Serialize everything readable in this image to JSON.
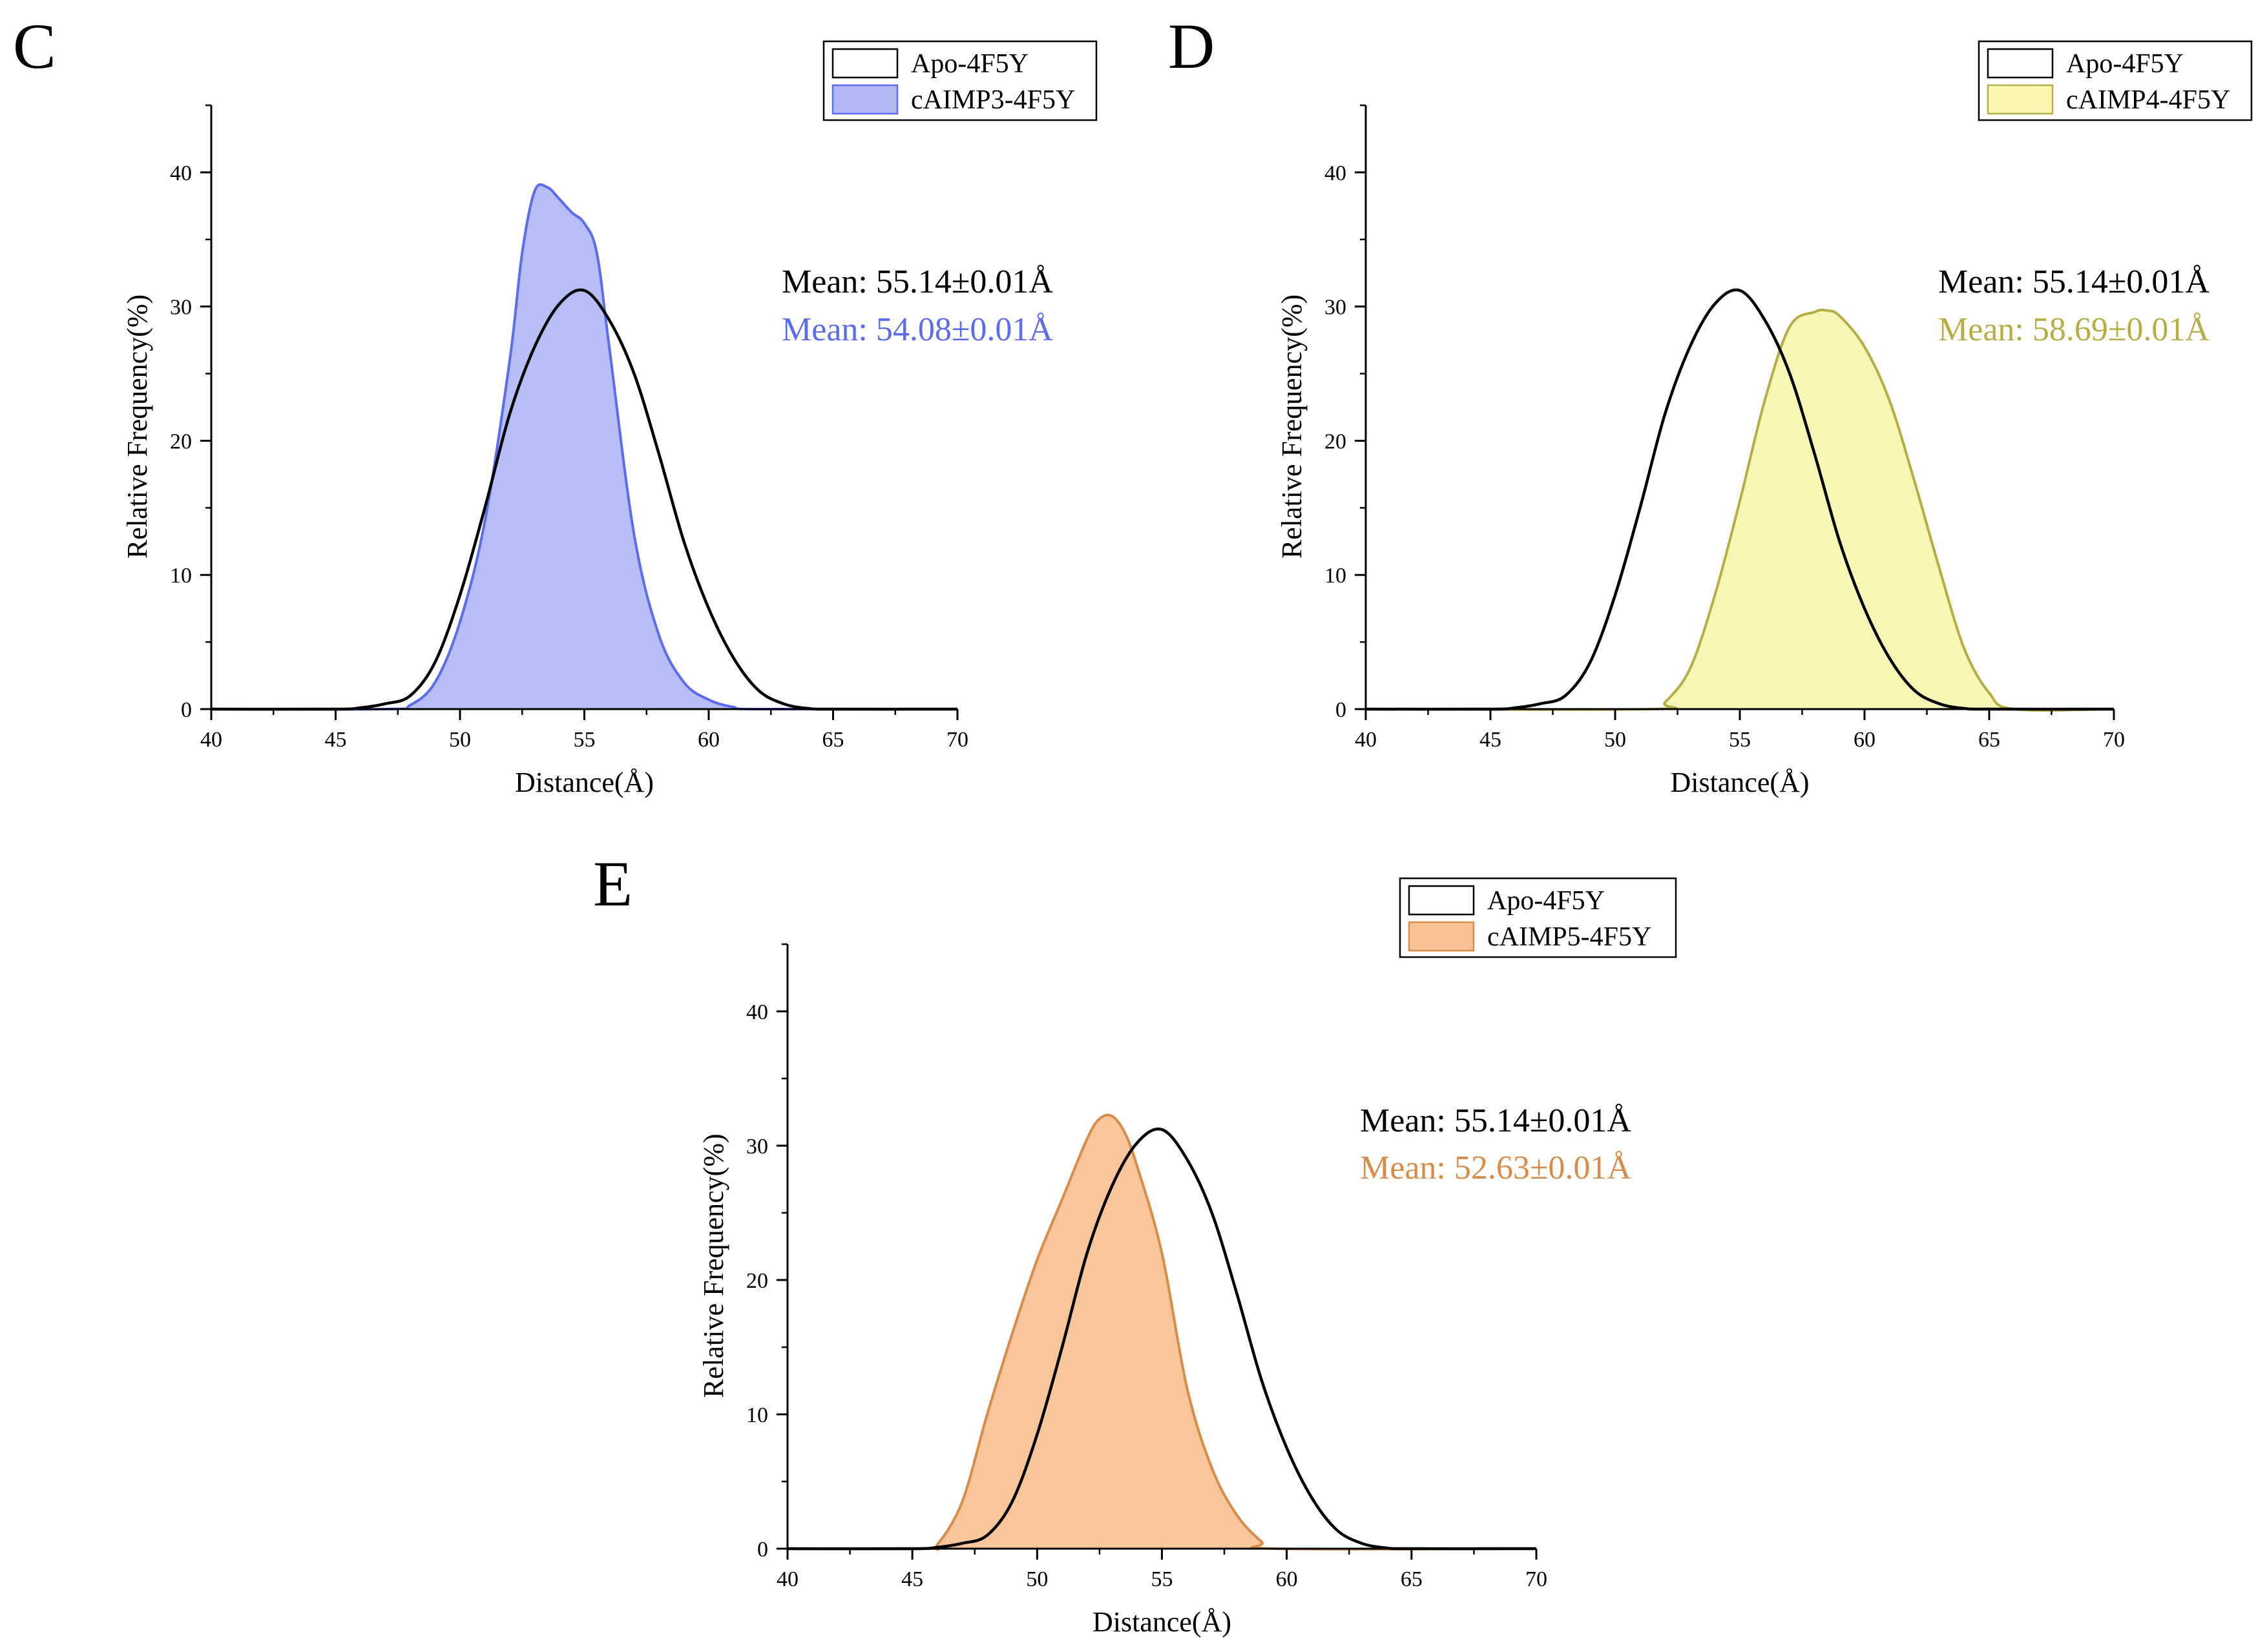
{
  "chart_data": [
    {
      "panel": "C",
      "type": "area",
      "xlabel": "Distance(Å)",
      "ylabel": "Relative Frequency(%)",
      "xlim": [
        40,
        70
      ],
      "ylim": [
        0,
        45
      ],
      "x_ticks": [
        40,
        45,
        50,
        55,
        60,
        65,
        70
      ],
      "y_ticks": [
        0,
        10,
        20,
        30,
        40
      ],
      "grid": false,
      "legend_position": "top-right",
      "series": [
        {
          "name": "Apo-4F5Y",
          "style": "line",
          "color": "#000000",
          "x": [
            40,
            45,
            46,
            47,
            48,
            49,
            50,
            51,
            52,
            53,
            54,
            55,
            56,
            57,
            58,
            59,
            60,
            61,
            62,
            63,
            64,
            65,
            70
          ],
          "y": [
            0,
            0,
            0.1,
            0.4,
            1,
            3.5,
            8.5,
            15,
            22,
            27,
            30.2,
            31.2,
            29,
            25,
            19,
            12.5,
            7.5,
            3.8,
            1.4,
            0.4,
            0.05,
            0,
            0
          ]
        },
        {
          "name": "cAIMP3-4F5Y",
          "style": "area",
          "color": "#5b6cf0",
          "fill": "#b3b9f7",
          "x": [
            40,
            47,
            48,
            49,
            50,
            51,
            52,
            52.5,
            53,
            53.5,
            54,
            54.5,
            55,
            55.5,
            56,
            57,
            58,
            59,
            60,
            61,
            62,
            70
          ],
          "y": [
            0,
            0,
            0.3,
            2,
            6.5,
            14,
            26,
            34,
            38.6,
            38.9,
            38,
            37,
            36.2,
            34,
            27,
            13,
            5.5,
            2,
            0.7,
            0.15,
            0,
            0
          ]
        }
      ],
      "annotations": [
        "Mean: 55.14±0.01Å",
        "Mean: 54.08±0.01Å"
      ]
    },
    {
      "panel": "D",
      "type": "area",
      "xlabel": "Distance(Å)",
      "ylabel": "Relative Frequency(%)",
      "xlim": [
        40,
        70
      ],
      "ylim": [
        0,
        45
      ],
      "x_ticks": [
        40,
        45,
        50,
        55,
        60,
        65,
        70
      ],
      "y_ticks": [
        0,
        10,
        20,
        30,
        40
      ],
      "grid": false,
      "legend_position": "top-right",
      "series": [
        {
          "name": "Apo-4F5Y",
          "style": "line",
          "color": "#000000",
          "x": [
            40,
            45,
            46,
            47,
            48,
            49,
            50,
            51,
            52,
            53,
            54,
            55,
            56,
            57,
            58,
            59,
            60,
            61,
            62,
            63,
            64,
            65,
            70
          ],
          "y": [
            0,
            0,
            0.1,
            0.4,
            1,
            3.5,
            8.5,
            15,
            22,
            27,
            30.2,
            31.2,
            29,
            25,
            19,
            12.5,
            7.5,
            3.8,
            1.4,
            0.4,
            0.05,
            0,
            0
          ]
        },
        {
          "name": "cAIMP4-4F5Y",
          "style": "area",
          "color": "#b5ad45",
          "fill": "#f8f6b0",
          "x": [
            40,
            51.5,
            52,
            53,
            54,
            55,
            56,
            57,
            58,
            58.5,
            59,
            60,
            61,
            62,
            63,
            64,
            65,
            66,
            70
          ],
          "y": [
            0,
            0,
            0.5,
            3,
            8.5,
            15.5,
            23,
            28.5,
            29.6,
            29.7,
            29.3,
            27,
            23,
            17,
            10.5,
            4.5,
            1.2,
            0,
            0
          ]
        }
      ],
      "annotations": [
        "Mean: 55.14±0.01Å",
        "Mean: 58.69±0.01Å"
      ]
    },
    {
      "panel": "E",
      "type": "area",
      "xlabel": "Distance(Å)",
      "ylabel": "Relative Frequency(%)",
      "xlim": [
        40,
        70
      ],
      "ylim": [
        0,
        45
      ],
      "x_ticks": [
        40,
        45,
        50,
        55,
        60,
        65,
        70
      ],
      "y_ticks": [
        0,
        10,
        20,
        30,
        40
      ],
      "grid": false,
      "legend_position": "top-right",
      "series": [
        {
          "name": "Apo-4F5Y",
          "style": "line",
          "color": "#000000",
          "x": [
            40,
            45,
            46,
            47,
            48,
            49,
            50,
            51,
            52,
            53,
            54,
            55,
            56,
            57,
            58,
            59,
            60,
            61,
            62,
            63,
            64,
            65,
            70
          ],
          "y": [
            0,
            0,
            0.1,
            0.4,
            1,
            3.5,
            8.5,
            15,
            22,
            27,
            30.2,
            31.2,
            29,
            25,
            19,
            12.5,
            7.5,
            3.8,
            1.4,
            0.4,
            0.05,
            0,
            0
          ]
        },
        {
          "name": "cAIMP5-4F5Y",
          "style": "area",
          "color": "#d98c4a",
          "fill": "#f9c296",
          "x": [
            40,
            45.5,
            46,
            47,
            48,
            49,
            50,
            51,
            52,
            52.5,
            53,
            53.5,
            54,
            55,
            56,
            57,
            58,
            59,
            59.5,
            70
          ],
          "y": [
            0,
            0,
            0.3,
            3.5,
            10,
            16,
            21.5,
            26,
            30.5,
            32,
            32.2,
            31,
            28.5,
            22,
            12,
            6,
            2.5,
            0.5,
            0,
            0
          ]
        }
      ],
      "annotations": [
        "Mean: 55.14±0.01Å",
        "Mean: 52.63±0.01Å"
      ]
    }
  ]
}
